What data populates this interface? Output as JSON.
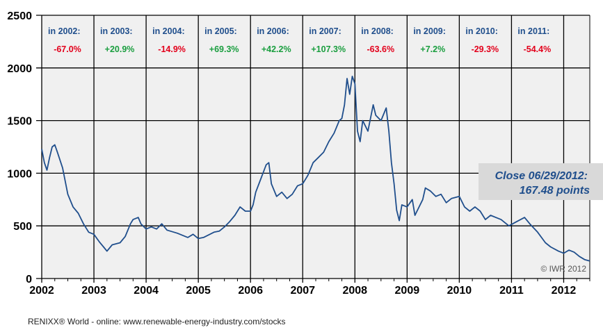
{
  "chart_data": {
    "type": "line",
    "title": "RENIXX World",
    "xlabel": "",
    "ylabel": "",
    "xlim": [
      2002,
      2012.5
    ],
    "ylim": [
      0,
      2500
    ],
    "grid": true,
    "yticks": [
      "0",
      "500",
      "1000",
      "1500",
      "2000",
      "2500"
    ],
    "xticks": [
      "2002",
      "2003",
      "2004",
      "2005",
      "2006",
      "2007",
      "2008",
      "2009",
      "2010",
      "2011",
      "2012"
    ],
    "annual_changes": [
      {
        "label": "in 2002:",
        "value": "-67.0%"
      },
      {
        "label": "in 2003:",
        "value": "+20.9%"
      },
      {
        "label": "in 2004:",
        "value": "-14.9%"
      },
      {
        "label": "in 2005:",
        "value": "+69.3%"
      },
      {
        "label": "in 2006:",
        "value": "+42.2%"
      },
      {
        "label": "in 2007:",
        "value": "+107.3%"
      },
      {
        "label": "in 2008:",
        "value": "-63.6%"
      },
      {
        "label": "in 2009:",
        "value": "+7.2%"
      },
      {
        "label": "in 2010:",
        "value": "-29.3%"
      },
      {
        "label": "in 2011:",
        "value": "-54.4%"
      }
    ],
    "close_line1": "Close 06/29/2012:",
    "close_line2": "167.48 points",
    "copyright": "© IWR 2012",
    "series": [
      {
        "name": "RENIXX World",
        "color": "#1f4e8c",
        "x": [
          2002.0,
          2002.05,
          2002.1,
          2002.15,
          2002.2,
          2002.25,
          2002.3,
          2002.4,
          2002.5,
          2002.6,
          2002.7,
          2002.8,
          2002.9,
          2003.0,
          2003.1,
          2003.2,
          2003.25,
          2003.35,
          2003.5,
          2003.6,
          2003.7,
          2003.75,
          2003.85,
          2003.9,
          2004.0,
          2004.1,
          2004.2,
          2004.3,
          2004.4,
          2004.6,
          2004.8,
          2004.9,
          2005.0,
          2005.1,
          2005.3,
          2005.4,
          2005.5,
          2005.6,
          2005.7,
          2005.8,
          2005.9,
          2006.0,
          2006.05,
          2006.1,
          2006.2,
          2006.3,
          2006.35,
          2006.4,
          2006.5,
          2006.6,
          2006.7,
          2006.8,
          2006.9,
          2007.0,
          2007.1,
          2007.2,
          2007.3,
          2007.4,
          2007.5,
          2007.6,
          2007.7,
          2007.75,
          2007.8,
          2007.85,
          2007.9,
          2007.95,
          2008.0,
          2008.05,
          2008.1,
          2008.15,
          2008.25,
          2008.35,
          2008.4,
          2008.5,
          2008.6,
          2008.65,
          2008.7,
          2008.75,
          2008.8,
          2008.85,
          2008.9,
          2009.0,
          2009.1,
          2009.15,
          2009.2,
          2009.3,
          2009.35,
          2009.45,
          2009.55,
          2009.65,
          2009.75,
          2009.85,
          2010.0,
          2010.1,
          2010.2,
          2010.3,
          2010.4,
          2010.5,
          2010.6,
          2010.7,
          2010.8,
          2010.95,
          2011.1,
          2011.25,
          2011.35,
          2011.5,
          2011.65,
          2011.75,
          2011.9,
          2012.0,
          2012.1,
          2012.2,
          2012.3,
          2012.4,
          2012.5
        ],
        "y": [
          1230,
          1100,
          1030,
          1150,
          1250,
          1270,
          1200,
          1050,
          800,
          680,
          620,
          520,
          440,
          420,
          350,
          290,
          260,
          320,
          340,
          400,
          520,
          560,
          580,
          520,
          470,
          490,
          470,
          520,
          460,
          430,
          390,
          420,
          380,
          390,
          440,
          450,
          490,
          540,
          600,
          680,
          640,
          640,
          700,
          820,
          950,
          1080,
          1100,
          900,
          780,
          820,
          760,
          800,
          880,
          900,
          980,
          1100,
          1150,
          1200,
          1300,
          1380,
          1500,
          1520,
          1650,
          1900,
          1750,
          1920,
          1850,
          1400,
          1300,
          1500,
          1400,
          1650,
          1550,
          1500,
          1620,
          1400,
          1100,
          900,
          650,
          550,
          700,
          680,
          750,
          600,
          650,
          750,
          860,
          830,
          780,
          800,
          720,
          760,
          780,
          680,
          640,
          680,
          640,
          560,
          600,
          580,
          560,
          500,
          540,
          580,
          520,
          440,
          340,
          300,
          260,
          240,
          270,
          250,
          210,
          180,
          167
        ]
      }
    ]
  },
  "footer": "RENIXX® World - online: www.renewable-energy-industry.com/stocks",
  "colors": {
    "plot_bg": "#f0f0f0",
    "grid": "#000000",
    "neg": "#e3001b",
    "pos": "#1a9e3f",
    "label": "#1f4e8c",
    "box": "#d9d9d9"
  }
}
